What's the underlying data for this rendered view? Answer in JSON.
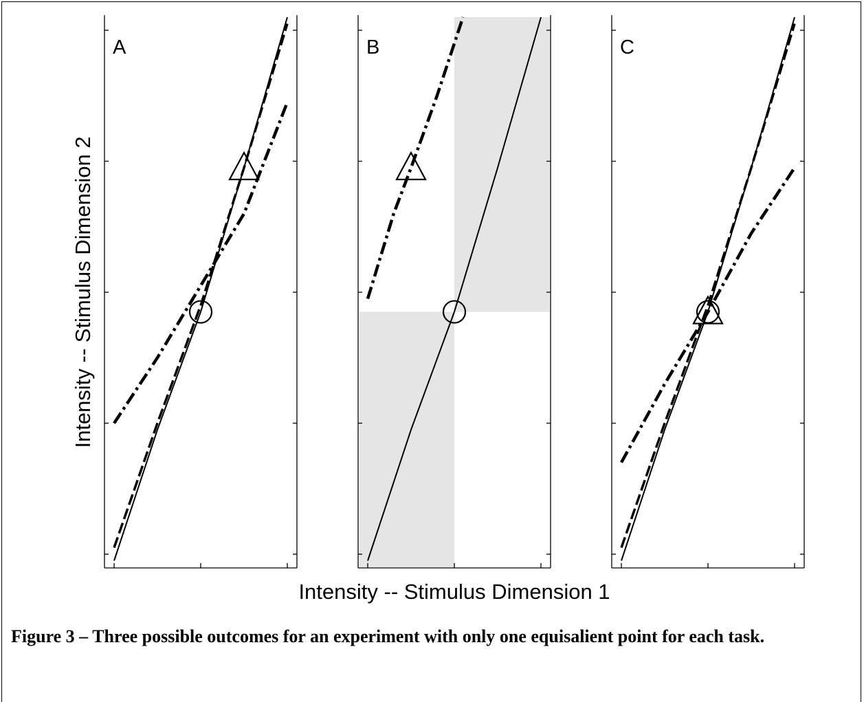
{
  "caption": "Figure 3 – Three possible outcomes for an experiment with only one equisalient point for each task.",
  "colors": {
    "shade": "#e5e5e5",
    "ink": "#000000"
  },
  "chart_data": {
    "type": "line",
    "xlabel": "Intensity -- Stimulus Dimension 1",
    "ylabel": "Intensity -- Stimulus Dimension 2",
    "tick_labels_shown": false,
    "xlim": [
      0,
      2
    ],
    "ylim": [
      0,
      4
    ],
    "x_ticks": [
      0,
      1,
      2
    ],
    "y_ticks": [
      0,
      1,
      2,
      3,
      4
    ],
    "line_styles": [
      "solid",
      "dashed",
      "dash-dot"
    ],
    "markers": [
      "circle",
      "triangle"
    ],
    "panels": [
      {
        "label": "A",
        "shaded_regions": [],
        "series": [
          {
            "style": "solid",
            "x": [
              0,
              0.5,
              1.0,
              1.5,
              2.0
            ],
            "y": [
              -0.05,
              0.95,
              1.85,
              2.95,
              4.1
            ]
          },
          {
            "style": "dashed",
            "x": [
              0,
              0.5,
              1.0,
              1.5,
              2.0
            ],
            "y": [
              0.05,
              1.0,
              1.9,
              2.95,
              4.05
            ]
          },
          {
            "style": "dash-dot",
            "x": [
              0,
              0.5,
              1.0,
              1.5,
              2.0
            ],
            "y": [
              1.0,
              1.5,
              2.05,
              2.6,
              3.45
            ]
          }
        ],
        "markers": [
          {
            "shape": "circle",
            "x": 1.0,
            "y": 1.85
          },
          {
            "shape": "triangle",
            "x": 1.5,
            "y": 2.95
          }
        ]
      },
      {
        "label": "B",
        "shaded_regions": [
          {
            "x": [
              -0.1,
              1.0
            ],
            "y": [
              -0.1,
              1.85
            ]
          },
          {
            "x": [
              1.0,
              2.1
            ],
            "y": [
              1.85,
              4.1
            ]
          }
        ],
        "series": [
          {
            "style": "solid",
            "x": [
              0,
              0.5,
              1.0,
              1.5,
              2.0
            ],
            "y": [
              -0.05,
              0.95,
              1.85,
              2.95,
              4.1
            ]
          },
          {
            "style": "dash-dot",
            "x": [
              0,
              0.3,
              0.5,
              0.8,
              1.1
            ],
            "y": [
              1.95,
              2.6,
              2.95,
              3.5,
              4.1
            ]
          }
        ],
        "markers": [
          {
            "shape": "circle",
            "x": 1.0,
            "y": 1.85
          },
          {
            "shape": "triangle",
            "x": 0.5,
            "y": 2.95
          }
        ]
      },
      {
        "label": "C",
        "shaded_regions": [],
        "series": [
          {
            "style": "solid",
            "x": [
              0,
              0.5,
              1.0,
              1.5,
              2.0
            ],
            "y": [
              -0.05,
              0.95,
              1.85,
              2.95,
              4.1
            ]
          },
          {
            "style": "dashed",
            "x": [
              0,
              0.5,
              1.0,
              1.5,
              2.0
            ],
            "y": [
              0.05,
              1.0,
              1.9,
              2.95,
              4.05
            ]
          },
          {
            "style": "dash-dot",
            "x": [
              0,
              0.5,
              1.0,
              1.5,
              2.0
            ],
            "y": [
              0.7,
              1.3,
              1.85,
              2.45,
              2.95
            ]
          }
        ],
        "markers": [
          {
            "shape": "circle",
            "x": 1.0,
            "y": 1.85
          },
          {
            "shape": "triangle",
            "x": 1.0,
            "y": 1.85
          }
        ]
      }
    ]
  }
}
